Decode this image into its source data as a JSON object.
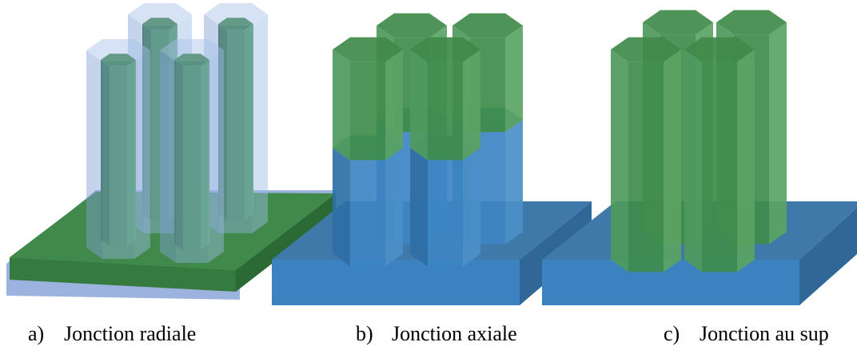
{
  "captions": [
    {
      "letter": "a)",
      "text": "Jonction radiale"
    },
    {
      "letter": "b)",
      "text": "Jonction axiale"
    },
    {
      "letter": "c)",
      "text": "Jonction au sup"
    }
  ]
}
